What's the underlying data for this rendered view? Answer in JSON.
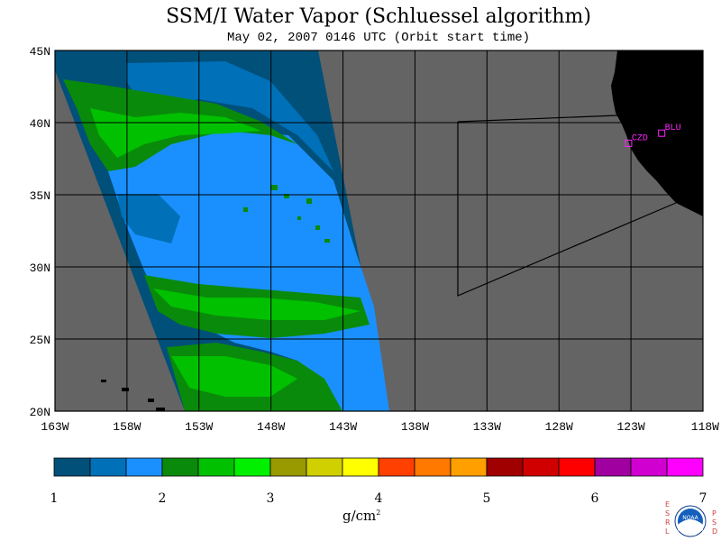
{
  "header": {
    "title": "SSM/I Water Vapor (Schluessel algorithm)",
    "subtitle": "May 02, 2007  0146 UTC  (Orbit start time)"
  },
  "map": {
    "lat_labels": [
      "45N",
      "40N",
      "35N",
      "30N",
      "25N",
      "20N"
    ],
    "lat_values": [
      45,
      40,
      35,
      30,
      25,
      20
    ],
    "lon_labels": [
      "163W",
      "158W",
      "153W",
      "148W",
      "143W",
      "138W",
      "133W",
      "128W",
      "123W",
      "118W"
    ],
    "lon_values": [
      -163,
      -158,
      -153,
      -148,
      -143,
      -138,
      -133,
      -128,
      -123,
      -118
    ],
    "lon_range": [
      -163,
      -118
    ],
    "lat_range": [
      20,
      45
    ],
    "land_color": "#000000",
    "missing_color": "#646464",
    "stations": [
      {
        "label": "CZD",
        "lat": 38.6,
        "lon": -123.2
      },
      {
        "label": "BLU",
        "lat": 39.3,
        "lon": -120.9
      }
    ],
    "station_color": "#ff22ff"
  },
  "colorbar": {
    "colors": [
      "#00507a",
      "#0070b8",
      "#1a90ff",
      "#0a8a0a",
      "#00c000",
      "#00f000",
      "#999900",
      "#d0d000",
      "#ffff00",
      "#ff4000",
      "#ff7800",
      "#ffa000",
      "#a00000",
      "#d00000",
      "#ff0000",
      "#a000a0",
      "#d000d0",
      "#ff00ff"
    ],
    "tick_labels": [
      "1",
      "2",
      "3",
      "4",
      "5",
      "6",
      "7"
    ],
    "tick_values": [
      1,
      2,
      3,
      4,
      5,
      6,
      7
    ],
    "units_base": "g/cm",
    "units_exp": "2"
  },
  "logo": {
    "left_text": "ESRL",
    "right_text": "PSD",
    "center_text": "NOAA"
  }
}
